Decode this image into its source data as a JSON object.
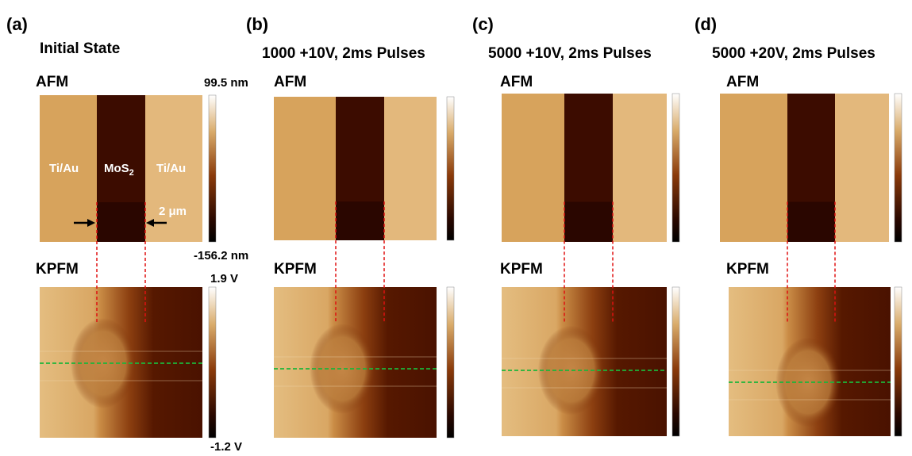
{
  "panels": [
    {
      "label": "(a)",
      "title": "Initial State",
      "afm": "AFM",
      "kpfm": "KPFM",
      "afm_max": "99.5 nm",
      "afm_min": "-156.2 nm",
      "kpfm_max": "1.9 V",
      "kpfm_min": "-1.2 V",
      "left_electrode": "Ti/Au",
      "channel": {
        "text": "MoS",
        "subscript": "2"
      },
      "right_electrode": "Ti/Au",
      "width": "2 μm"
    },
    {
      "label": "(b)",
      "title": "1000 +10V, 2ms Pulses",
      "afm": "AFM",
      "kpfm": "KPFM"
    },
    {
      "label": "(c)",
      "title": "5000 +10V, 2ms Pulses",
      "afm": "AFM",
      "kpfm": "KPFM"
    },
    {
      "label": "(d)",
      "title": "5000 +20V, 2ms Pulses",
      "afm": "AFM",
      "kpfm": "KPFM"
    }
  ]
}
